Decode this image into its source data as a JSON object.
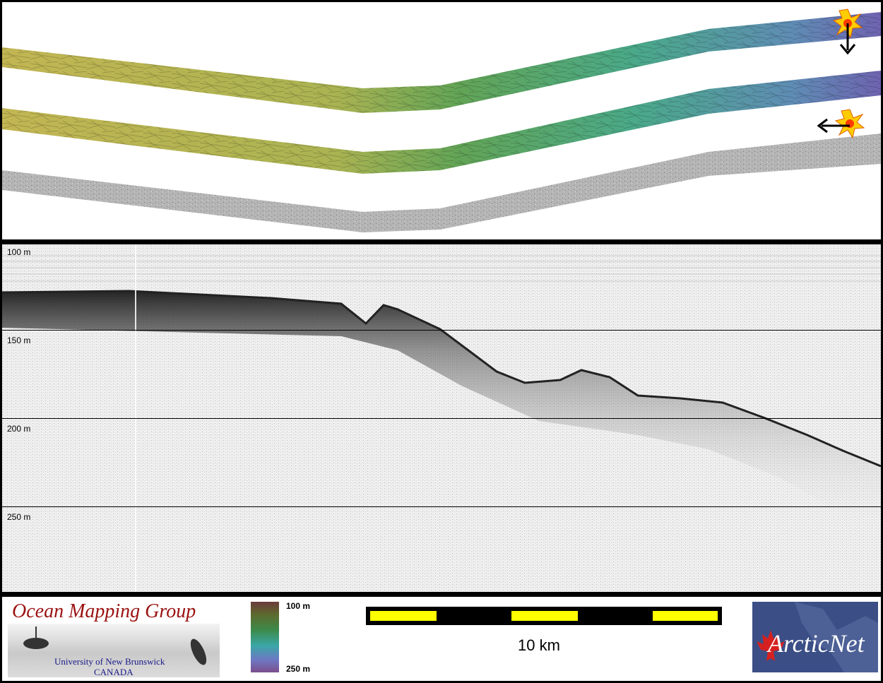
{
  "echogram": {
    "depth_labels": [
      "100 m",
      "150 m",
      "200 m",
      "250 m"
    ]
  },
  "legend": {
    "group_title": "Ocean Mapping Group",
    "university": "University of New Brunswick",
    "country": "CANADA",
    "colorbar_top": "100 m",
    "colorbar_bottom": "250 m",
    "scale_label": "10 km",
    "partner_logo_text": "ArcticNet"
  },
  "colors": {
    "swath_shallow": "#bcb24e",
    "swath_mid": "#4aa56a",
    "swath_deep": "#6a6ab8",
    "backscatter": "#a9a9a9",
    "scale_fill": "#ffff00",
    "sun_marker": "#ffcc00"
  },
  "icons": [
    "sun-marker-icon",
    "arrow-down-icon",
    "arrow-left-icon",
    "maple-leaf-icon"
  ]
}
